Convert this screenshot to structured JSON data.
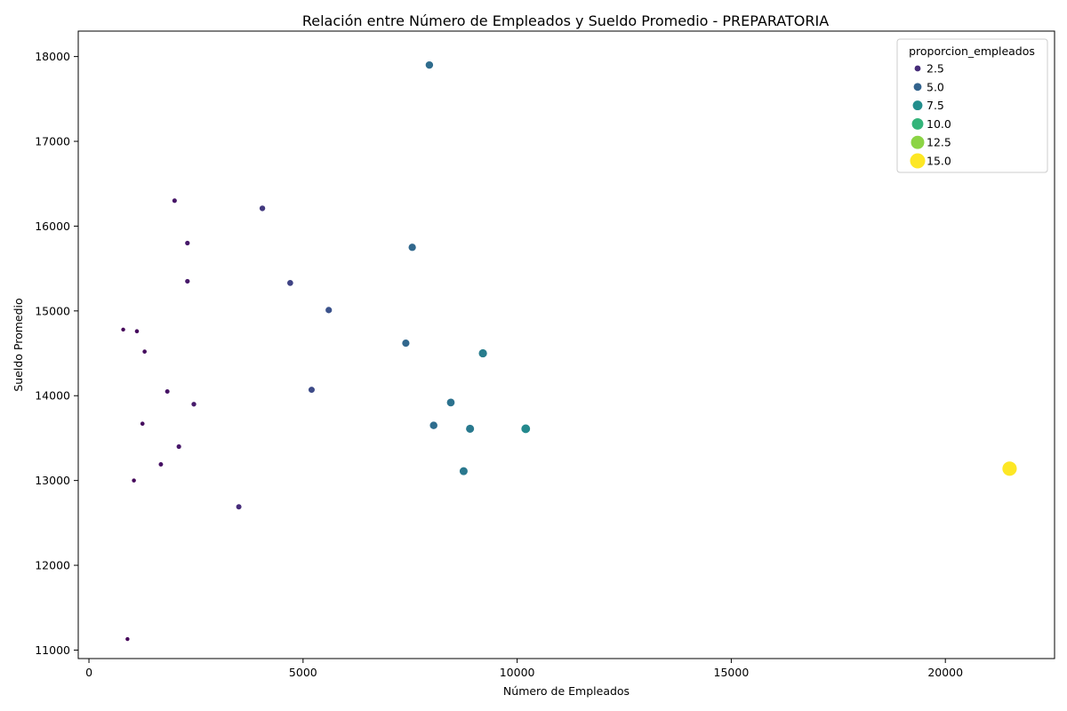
{
  "chart_data": {
    "type": "scatter",
    "title": "Relación entre Número de Empleados y Sueldo Promedio - PREPARATORIA",
    "xlabel": "Número de Empleados",
    "ylabel": "Sueldo Promedio",
    "xlim": [
      -250,
      22550
    ],
    "ylim": [
      10900,
      18300
    ],
    "xticks": [
      0,
      5000,
      10000,
      15000,
      20000
    ],
    "xtick_labels": [
      "0",
      "5000",
      "10000",
      "15000",
      "20000"
    ],
    "yticks": [
      11000,
      12000,
      13000,
      14000,
      15000,
      16000,
      17000,
      18000
    ],
    "ytick_labels": [
      "11000",
      "12000",
      "13000",
      "14000",
      "15000",
      "16000",
      "17000",
      "18000"
    ],
    "grid": false,
    "hue_variable": "proporcion_empleados",
    "colormap": "viridis",
    "hue_range": [
      0.3,
      15.0
    ],
    "legend": {
      "title": "proporcion_empleados",
      "placement": "top-right",
      "entries": [
        {
          "label": "2.5",
          "value": 2.5
        },
        {
          "label": "5.0",
          "value": 5.0
        },
        {
          "label": "7.5",
          "value": 7.5
        },
        {
          "label": "10.0",
          "value": 10.0
        },
        {
          "label": "12.5",
          "value": 12.5
        },
        {
          "label": "15.0",
          "value": 15.0
        }
      ]
    },
    "points": [
      {
        "x": 7950,
        "y": 17900,
        "p": 5.5
      },
      {
        "x": 2000,
        "y": 16300,
        "p": 1.4
      },
      {
        "x": 4050,
        "y": 16210,
        "p": 3.0
      },
      {
        "x": 2300,
        "y": 15800,
        "p": 1.6
      },
      {
        "x": 7550,
        "y": 15750,
        "p": 5.3
      },
      {
        "x": 2300,
        "y": 15350,
        "p": 1.6
      },
      {
        "x": 4700,
        "y": 15330,
        "p": 3.4
      },
      {
        "x": 5600,
        "y": 15010,
        "p": 4.0
      },
      {
        "x": 800,
        "y": 14780,
        "p": 0.6
      },
      {
        "x": 1120,
        "y": 14760,
        "p": 0.8
      },
      {
        "x": 7400,
        "y": 14620,
        "p": 5.2
      },
      {
        "x": 9200,
        "y": 14500,
        "p": 6.5
      },
      {
        "x": 1300,
        "y": 14520,
        "p": 0.9
      },
      {
        "x": 5200,
        "y": 14070,
        "p": 3.7
      },
      {
        "x": 1830,
        "y": 14050,
        "p": 1.3
      },
      {
        "x": 8450,
        "y": 13920,
        "p": 5.9
      },
      {
        "x": 2450,
        "y": 13900,
        "p": 1.7
      },
      {
        "x": 1250,
        "y": 13670,
        "p": 0.9
      },
      {
        "x": 8050,
        "y": 13650,
        "p": 5.6
      },
      {
        "x": 8900,
        "y": 13610,
        "p": 6.3
      },
      {
        "x": 10200,
        "y": 13610,
        "p": 7.2
      },
      {
        "x": 2100,
        "y": 13400,
        "p": 1.5
      },
      {
        "x": 1680,
        "y": 13190,
        "p": 1.2
      },
      {
        "x": 8750,
        "y": 13110,
        "p": 6.2
      },
      {
        "x": 21500,
        "y": 13140,
        "p": 15.0
      },
      {
        "x": 1050,
        "y": 13000,
        "p": 0.7
      },
      {
        "x": 3500,
        "y": 12690,
        "p": 2.5
      },
      {
        "x": 900,
        "y": 11130,
        "p": 0.6
      }
    ]
  }
}
